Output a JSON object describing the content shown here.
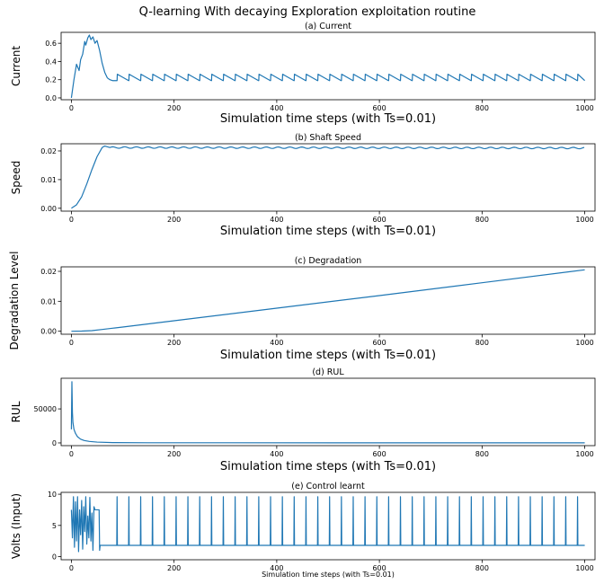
{
  "figure_title": "Q-learning With decaying Exploration exploitation routine",
  "line_color": "#1f77b4",
  "chart_data": [
    {
      "id": "current",
      "type": "line",
      "title": "(a) Current",
      "xlabel": "Simulation time steps (with Ts=0.01)",
      "ylabel": "Current",
      "xlim": [
        -20,
        1020
      ],
      "ylim": [
        -0.02,
        0.72
      ],
      "xticks": [
        0,
        200,
        400,
        600,
        800,
        1000
      ],
      "yticks": [
        0.0,
        0.2,
        0.4,
        0.6
      ],
      "ytick_labels": [
        "0.0",
        "0.2",
        "0.4",
        "0.6"
      ],
      "description": "Rises to a peak near 0.69 around step 35, decays to about 0.2 by step 70, then shows periodic sawtooth spikes to about 0.26 roughly every 23 steps up to step 1000.",
      "x": [
        0,
        5,
        10,
        15,
        18,
        22,
        26,
        28,
        32,
        35,
        38,
        42,
        46,
        50,
        55,
        60,
        65,
        70,
        75,
        80,
        85,
        88,
        89,
        1000
      ],
      "y": [
        0.0,
        0.2,
        0.37,
        0.3,
        0.42,
        0.48,
        0.62,
        0.58,
        0.66,
        0.69,
        0.64,
        0.67,
        0.6,
        0.63,
        0.52,
        0.38,
        0.28,
        0.22,
        0.2,
        0.19,
        0.19,
        0.19,
        0.26,
        0.2
      ],
      "sawtooth": {
        "start": 89,
        "period": 23,
        "peak": 0.26,
        "base": 0.19,
        "end": 1000
      }
    },
    {
      "id": "speed",
      "type": "line",
      "title": "(b) Shaft Speed",
      "xlabel": "Simulation time steps (with Ts=0.01)",
      "ylabel": "Speed",
      "xlim": [
        -20,
        1020
      ],
      "ylim": [
        -0.001,
        0.0225
      ],
      "xticks": [
        0,
        200,
        400,
        600,
        800,
        1000
      ],
      "yticks": [
        0.0,
        0.01,
        0.02
      ],
      "ytick_labels": [
        "0.00",
        "0.01",
        "0.02"
      ],
      "description": "S-shaped rise from 0 to about 0.0215 by step 65, then nearly flat with small ripples around 0.021.",
      "x": [
        0,
        10,
        20,
        30,
        40,
        50,
        60,
        65,
        75,
        100,
        1000
      ],
      "y": [
        0.0,
        0.0012,
        0.004,
        0.0085,
        0.0135,
        0.018,
        0.0212,
        0.0217,
        0.0218,
        0.0214,
        0.021
      ],
      "ripple": {
        "start": 75,
        "period": 23,
        "amplitude": 0.00025,
        "base": 0.0212,
        "end": 1000
      }
    },
    {
      "id": "degradation",
      "type": "line",
      "title": "(c) Degradation",
      "xlabel": "Simulation time steps (with Ts=0.01)",
      "ylabel": "Degradation Level",
      "xlim": [
        -20,
        1020
      ],
      "ylim": [
        -0.001,
        0.0215
      ],
      "xticks": [
        0,
        200,
        400,
        600,
        800,
        1000
      ],
      "yticks": [
        0.0,
        0.01,
        0.02
      ],
      "ytick_labels": [
        "0.00",
        "0.01",
        "0.02"
      ],
      "description": "Flat near zero until about step 40, then increases approximately linearly to about 0.0205 at step 1000.",
      "x": [
        0,
        20,
        40,
        60,
        80,
        100,
        200,
        400,
        600,
        800,
        1000
      ],
      "y": [
        0.0,
        5e-05,
        0.0002,
        0.0006,
        0.001,
        0.0014,
        0.0035,
        0.0077,
        0.0119,
        0.0162,
        0.0205
      ]
    },
    {
      "id": "rul",
      "type": "line",
      "title": "(d) RUL",
      "xlabel": "Simulation time steps (with Ts=0.01)",
      "ylabel": "RUL",
      "xlim": [
        -20,
        1020
      ],
      "ylim": [
        -4000,
        95000
      ],
      "xticks": [
        0,
        200,
        400,
        600,
        800,
        1000
      ],
      "yticks": [
        0,
        50000
      ],
      "ytick_labels": [
        "0",
        "50000"
      ],
      "description": "Spikes to about 90000 at step 1, drops rapidly, decaying toward zero by step 80 and remains near zero.",
      "x": [
        0,
        1,
        2,
        3,
        5,
        8,
        12,
        18,
        25,
        35,
        50,
        80,
        150,
        1000
      ],
      "y": [
        20000,
        90000,
        45000,
        30000,
        20000,
        14000,
        9000,
        5500,
        3500,
        2200,
        1200,
        500,
        200,
        100
      ]
    },
    {
      "id": "control",
      "type": "line",
      "title": "(e) Control learnt",
      "xlabel": "Simulation time steps (with Ts=0.01)",
      "ylabel": "Volts (Input)",
      "xlim": [
        -20,
        1020
      ],
      "ylim": [
        -0.5,
        10.3
      ],
      "xticks": [
        0,
        200,
        400,
        600,
        800,
        1000
      ],
      "yticks": [
        0,
        5,
        10
      ],
      "ytick_labels": [
        "0",
        "5",
        "10"
      ],
      "description": "Erratic switching between about 1 and 10 volts during the first ~45 steps, a plateau near 7.5 until step 55, then a baseline of about 1.8 volts with narrow spikes to about 9.6 roughly every 23 steps.",
      "x": [
        0,
        2,
        4,
        6,
        8,
        10,
        12,
        14,
        16,
        18,
        20,
        22,
        24,
        26,
        28,
        30,
        32,
        34,
        36,
        38,
        40,
        42,
        44,
        46,
        54,
        55,
        56,
        60,
        88,
        89,
        90,
        1000
      ],
      "y": [
        7.5,
        3.0,
        9.6,
        1.5,
        8.8,
        2.5,
        9.6,
        0.8,
        7.5,
        3.5,
        9.0,
        1.2,
        8.0,
        4.0,
        9.6,
        2.0,
        6.5,
        3.0,
        9.5,
        2.5,
        7.0,
        1.0,
        8.0,
        7.5,
        7.5,
        1.0,
        1.8,
        1.8,
        1.8,
        9.6,
        1.8,
        1.8
      ],
      "spikes": {
        "start": 89,
        "period": 23,
        "peak": 9.6,
        "base": 1.8,
        "end": 1000
      }
    }
  ]
}
